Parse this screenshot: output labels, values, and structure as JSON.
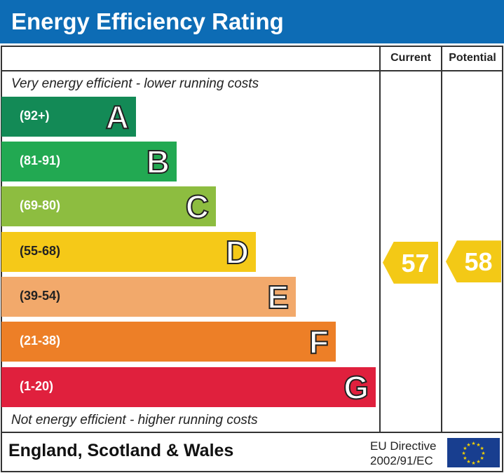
{
  "title": "Energy Efficiency Rating",
  "columns": {
    "current": "Current",
    "potential": "Potential"
  },
  "notes": {
    "top": "Very energy efficient - lower running costs",
    "bottom": "Not energy efficient - higher running costs"
  },
  "chart_data": {
    "type": "bar",
    "bands": [
      {
        "letter": "A",
        "range": "(92+)",
        "color": "#138a56"
      },
      {
        "letter": "B",
        "range": "(81-91)",
        "color": "#22a952"
      },
      {
        "letter": "C",
        "range": "(69-80)",
        "color": "#8dbd40"
      },
      {
        "letter": "D",
        "range": "(55-68)",
        "color": "#f5c918"
      },
      {
        "letter": "E",
        "range": "(39-54)",
        "color": "#f2a96b"
      },
      {
        "letter": "F",
        "range": "(21-38)",
        "color": "#ed7f27"
      },
      {
        "letter": "G",
        "range": "(1-20)",
        "color": "#e0203d"
      }
    ],
    "current": 57,
    "potential": 58,
    "indicator_color": "#f3c916"
  },
  "footer": {
    "region": "England, Scotland & Wales",
    "directive_line1": "EU Directive",
    "directive_line2": "2002/91/EC",
    "flag": "eu-flag-icon"
  }
}
